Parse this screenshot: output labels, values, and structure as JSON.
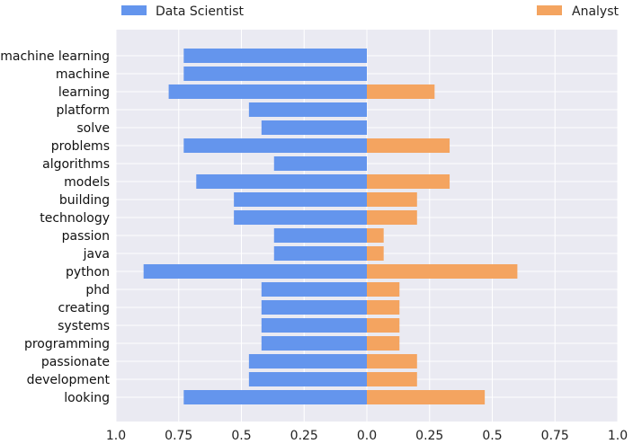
{
  "chart_data": {
    "type": "bar",
    "orientation": "horizontal-diverging",
    "categories": [
      "machine learning",
      "machine",
      "learning",
      "platform",
      "solve",
      "problems",
      "algorithms",
      "models",
      "building",
      "technology",
      "passion",
      "java",
      "python",
      "phd",
      "creating",
      "systems",
      "programming",
      "passionate",
      "development",
      "looking"
    ],
    "series": [
      {
        "name": "Data Scientist",
        "color": "#6495ED",
        "direction": "left",
        "values": [
          0.73,
          0.73,
          0.79,
          0.47,
          0.42,
          0.73,
          0.37,
          0.68,
          0.53,
          0.53,
          0.37,
          0.37,
          0.89,
          0.42,
          0.42,
          0.42,
          0.42,
          0.47,
          0.47,
          0.73
        ]
      },
      {
        "name": "Analyst",
        "color": "#F4A460",
        "direction": "right",
        "values": [
          0,
          0,
          0.27,
          0,
          0,
          0.33,
          0,
          0.33,
          0.2,
          0.2,
          0.067,
          0.067,
          0.6,
          0.13,
          0.13,
          0.13,
          0.13,
          0.2,
          0.2,
          0.47
        ]
      }
    ],
    "xlim": [
      -1.0,
      1.0
    ],
    "x_ticks": [
      -1.0,
      -0.75,
      -0.5,
      -0.25,
      0.0,
      0.25,
      0.5,
      0.75,
      1.0
    ],
    "x_tick_labels": [
      "1.0",
      "0.75",
      "0.5",
      "0.25",
      "0.0",
      "0.25",
      "0.5",
      "0.75",
      "1.0"
    ],
    "title": "",
    "xlabel": "",
    "ylabel": "",
    "grid": true,
    "legend": "top",
    "background_color": "#EAEAF2"
  }
}
